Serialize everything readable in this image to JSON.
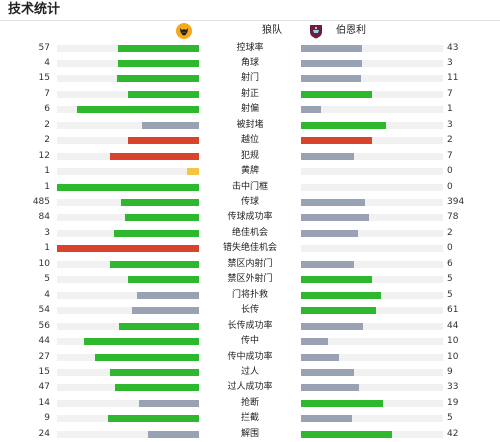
{
  "header": {
    "title": "技术统计"
  },
  "teams": {
    "home": "狼队",
    "away": "伯恩利"
  },
  "colors": {
    "green": "#2db82d",
    "grey": "#98a2b3",
    "red": "#d9422b",
    "yellow": "#f5c542"
  },
  "stats": [
    {
      "label": "控球率",
      "home": "57",
      "away": "43",
      "hf": 57,
      "af": 43,
      "hc": "green",
      "ac": "grey"
    },
    {
      "label": "角球",
      "home": "4",
      "away": "3",
      "hf": 57,
      "af": 43,
      "hc": "green",
      "ac": "grey"
    },
    {
      "label": "射门",
      "home": "15",
      "away": "11",
      "hf": 58,
      "af": 42,
      "hc": "green",
      "ac": "grey"
    },
    {
      "label": "射正",
      "home": "7",
      "away": "7",
      "hf": 50,
      "af": 50,
      "hc": "green",
      "ac": "green"
    },
    {
      "label": "射偏",
      "home": "6",
      "away": "1",
      "hf": 86,
      "af": 14,
      "hc": "green",
      "ac": "grey"
    },
    {
      "label": "被封堵",
      "home": "2",
      "away": "3",
      "hf": 40,
      "af": 60,
      "hc": "grey",
      "ac": "green"
    },
    {
      "label": "越位",
      "home": "2",
      "away": "2",
      "hf": 50,
      "af": 50,
      "hc": "red",
      "ac": "red"
    },
    {
      "label": "犯规",
      "home": "12",
      "away": "7",
      "hf": 63,
      "af": 37,
      "hc": "red",
      "ac": "grey"
    },
    {
      "label": "黄牌",
      "home": "1",
      "away": "0",
      "hf": "card",
      "af": 0,
      "hc": "yellow",
      "ac": "grey"
    },
    {
      "label": "击中门框",
      "home": "1",
      "away": "0",
      "hf": 100,
      "af": 0,
      "hc": "green",
      "ac": "grey"
    },
    {
      "label": "传球",
      "home": "485",
      "away": "394",
      "hf": 55,
      "af": 45,
      "hc": "green",
      "ac": "grey"
    },
    {
      "label": "传球成功率",
      "home": "84",
      "away": "78",
      "hf": 52,
      "af": 48,
      "hc": "green",
      "ac": "grey"
    },
    {
      "label": "绝佳机会",
      "home": "3",
      "away": "2",
      "hf": 60,
      "af": 40,
      "hc": "green",
      "ac": "grey"
    },
    {
      "label": "错失绝佳机会",
      "home": "1",
      "away": "0",
      "hf": 100,
      "af": 0,
      "hc": "red",
      "ac": "grey"
    },
    {
      "label": "禁区内射门",
      "home": "10",
      "away": "6",
      "hf": 63,
      "af": 37,
      "hc": "green",
      "ac": "grey"
    },
    {
      "label": "禁区外射门",
      "home": "5",
      "away": "5",
      "hf": 50,
      "af": 50,
      "hc": "green",
      "ac": "green"
    },
    {
      "label": "门将扑救",
      "home": "4",
      "away": "5",
      "hf": 44,
      "af": 56,
      "hc": "grey",
      "ac": "green"
    },
    {
      "label": "长传",
      "home": "54",
      "away": "61",
      "hf": 47,
      "af": 53,
      "hc": "grey",
      "ac": "green"
    },
    {
      "label": "长传成功率",
      "home": "56",
      "away": "44",
      "hf": 56,
      "af": 44,
      "hc": "green",
      "ac": "grey"
    },
    {
      "label": "传中",
      "home": "44",
      "away": "10",
      "hf": 81,
      "af": 19,
      "hc": "green",
      "ac": "grey"
    },
    {
      "label": "传中成功率",
      "home": "27",
      "away": "10",
      "hf": 73,
      "af": 27,
      "hc": "green",
      "ac": "grey"
    },
    {
      "label": "过人",
      "home": "15",
      "away": "9",
      "hf": 63,
      "af": 37,
      "hc": "green",
      "ac": "grey"
    },
    {
      "label": "过人成功率",
      "home": "47",
      "away": "33",
      "hf": 59,
      "af": 41,
      "hc": "green",
      "ac": "grey"
    },
    {
      "label": "抢断",
      "home": "14",
      "away": "19",
      "hf": 42,
      "af": 58,
      "hc": "grey",
      "ac": "green"
    },
    {
      "label": "拦截",
      "home": "9",
      "away": "5",
      "hf": 64,
      "af": 36,
      "hc": "green",
      "ac": "grey"
    },
    {
      "label": "解围",
      "home": "24",
      "away": "42",
      "hf": 36,
      "af": 64,
      "hc": "grey",
      "ac": "green"
    }
  ]
}
